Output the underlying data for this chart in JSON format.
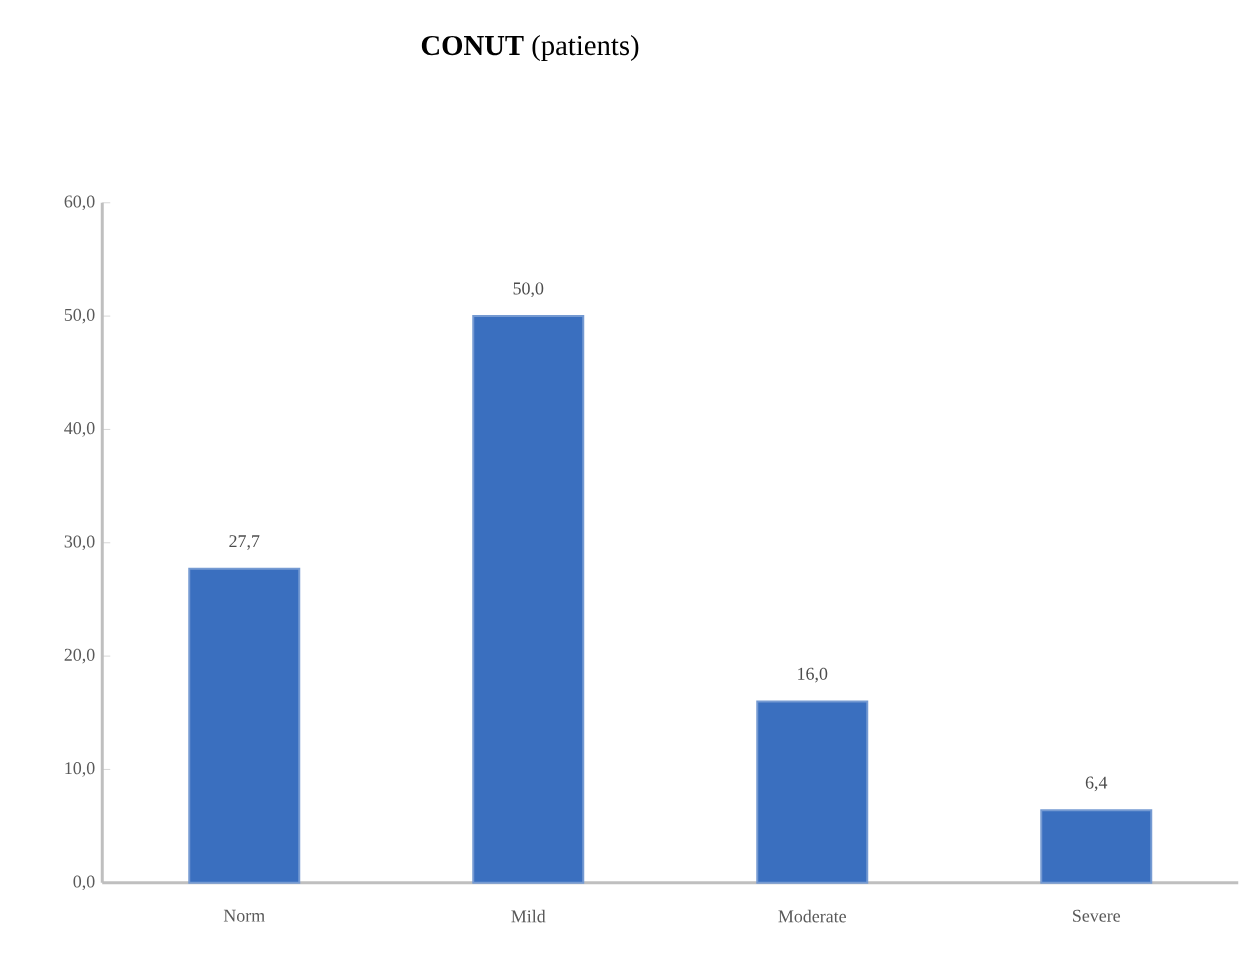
{
  "chart_data": {
    "type": "bar",
    "title": "**CONUT** (patients)",
    "categories": [
      "Norm",
      "Mild",
      "Moderate",
      "Severe"
    ],
    "values": [
      27.7,
      50.0,
      16.0,
      6.4
    ],
    "value_labels": [
      "27,7",
      "50,0",
      "16,0",
      "6,4"
    ],
    "color": "#3a6fbf",
    "ylim": [
      0,
      60
    ],
    "yticks": [
      {
        "value": 0,
        "label": "0,0"
      },
      {
        "value": 10,
        "label": "10,0"
      },
      {
        "value": 20,
        "label": "20,0"
      },
      {
        "value": 30,
        "label": "30,0"
      },
      {
        "value": 40,
        "label": "40,0"
      },
      {
        "value": 50,
        "label": "50,0"
      },
      {
        "value": 60,
        "label": "60,0"
      }
    ],
    "grid": false
  }
}
